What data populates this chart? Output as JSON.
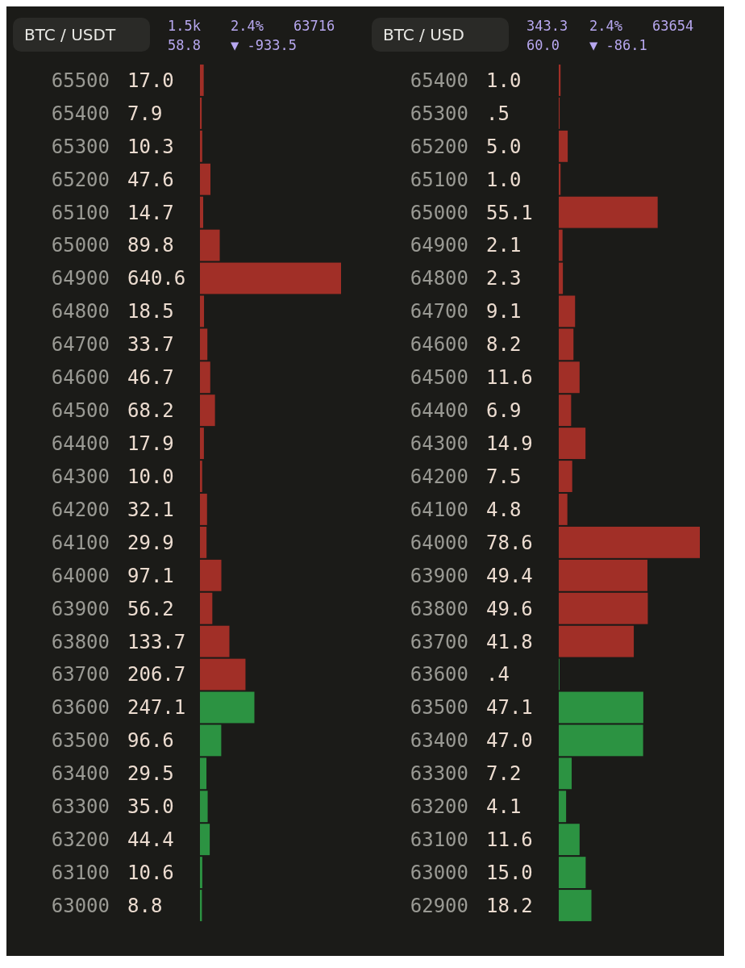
{
  "chart_data": [
    {
      "type": "bar",
      "orientation": "horizontal",
      "title": "BTC / USDT",
      "tick_labels": "y",
      "categories": [
        "65500",
        "65400",
        "65300",
        "65200",
        "65100",
        "65000",
        "64900",
        "64800",
        "64700",
        "64600",
        "64500",
        "64400",
        "64300",
        "64200",
        "64100",
        "64000",
        "63900",
        "63800",
        "63700",
        "63600",
        "63500",
        "63400",
        "63300",
        "63200",
        "63100",
        "63000"
      ],
      "values": [
        17.0,
        7.9,
        10.3,
        47.6,
        14.7,
        89.8,
        640.6,
        18.5,
        33.7,
        46.7,
        68.2,
        17.9,
        10.0,
        32.1,
        29.9,
        97.1,
        56.2,
        133.7,
        206.7,
        247.1,
        96.6,
        29.5,
        35.0,
        44.4,
        10.6,
        8.8
      ],
      "value_labels": [
        "17.0",
        "7.9",
        "10.3",
        "47.6",
        "14.7",
        "89.8",
        "640.6",
        "18.5",
        "33.7",
        "46.7",
        "68.2",
        "17.9",
        "10.0",
        "32.1",
        "29.9",
        "97.1",
        "56.2",
        "133.7",
        "206.7",
        "247.1",
        "96.6",
        "29.5",
        "35.0",
        "44.4",
        "10.6",
        "8.8"
      ],
      "colors": [
        "#b8322a",
        "#b8322a",
        "#b8322a",
        "#b8322a",
        "#b8322a",
        "#b8322a",
        "#b8322a",
        "#b8322a",
        "#b8322a",
        "#b8322a",
        "#b8322a",
        "#b8322a",
        "#b8322a",
        "#b8322a",
        "#b8322a",
        "#b8322a",
        "#b8322a",
        "#b8322a",
        "#b8322a",
        "#2fa84a",
        "#2fa84a",
        "#2fa84a",
        "#2fa84a",
        "#2fa84a",
        "#2fa84a",
        "#2fa84a"
      ],
      "annotations": [
        "1.5k",
        "2.4%",
        "63716",
        "58.8",
        "▼ -933.5"
      ]
    },
    {
      "type": "bar",
      "orientation": "horizontal",
      "title": "BTC / USD",
      "tick_labels": "y",
      "categories": [
        "65400",
        "65300",
        "65200",
        "65100",
        "65000",
        "64900",
        "64800",
        "64700",
        "64600",
        "64500",
        "64400",
        "64300",
        "64200",
        "64100",
        "64000",
        "63900",
        "63800",
        "63700",
        "63600",
        "63500",
        "63400",
        "63300",
        "63200",
        "63100",
        "63000",
        "62900"
      ],
      "values": [
        1.0,
        0.5,
        5.0,
        1.0,
        55.1,
        2.1,
        2.3,
        9.1,
        8.2,
        11.6,
        6.9,
        14.9,
        7.5,
        4.8,
        78.6,
        49.4,
        49.6,
        41.8,
        0.4,
        47.1,
        47.0,
        7.2,
        4.1,
        11.6,
        15.0,
        18.2
      ],
      "value_labels": [
        "1.0",
        ".5",
        "5.0",
        "1.0",
        "55.1",
        "2.1",
        "2.3",
        "9.1",
        "8.2",
        "11.6",
        "6.9",
        "14.9",
        "7.5",
        "4.8",
        "78.6",
        "49.4",
        "49.6",
        "41.8",
        ".4",
        "47.1",
        "47.0",
        "7.2",
        "4.1",
        "11.6",
        "15.0",
        "18.2"
      ],
      "colors": [
        "#b8322a",
        "#b8322a",
        "#b8322a",
        "#b8322a",
        "#b8322a",
        "#b8322a",
        "#b8322a",
        "#b8322a",
        "#b8322a",
        "#b8322a",
        "#b8322a",
        "#b8322a",
        "#b8322a",
        "#b8322a",
        "#b8322a",
        "#b8322a",
        "#b8322a",
        "#b8322a",
        "#2fa84a",
        "#2fa84a",
        "#2fa84a",
        "#2fa84a",
        "#2fa84a",
        "#2fa84a",
        "#2fa84a",
        "#2fa84a"
      ],
      "annotations": [
        "343.3",
        "2.4%",
        "63654",
        "60.0",
        "▼ -86.1"
      ]
    }
  ]
}
